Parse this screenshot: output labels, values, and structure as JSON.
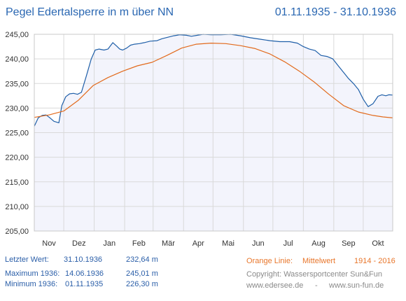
{
  "header": {
    "title": "Pegel Edertalsperre in m über NN",
    "period": "01.11.1935 - 31.10.1936"
  },
  "colors": {
    "pegel_line": "#1f5fa8",
    "mean_line": "#e26a1c",
    "plot_fill": "#f3f4fc",
    "grid": "#d9d9d9",
    "text": "#2a5ea8",
    "orange_text": "#e8762b",
    "grey_text": "#8a8a8a"
  },
  "info": {
    "last": {
      "label": "Letzter Wert:",
      "date": "31.10.1936",
      "value": "232,64 m"
    },
    "max": {
      "label": "Maximum 1936:",
      "date": "14.06.1936",
      "value": "245,01 m"
    },
    "min": {
      "label": "Minimum  1936:",
      "date": "01.11.1935",
      "value": "226,30 m"
    },
    "legend_label": "Orange Linie:",
    "legend_name": "Mittelwert",
    "legend_years": "1914 - 2016",
    "copyright": "Copyright: Wassersportcenter Sun&Fun",
    "site1": "www.edersee.de",
    "separator": "-",
    "site2": "www.sun-fun.de"
  },
  "chart_data": {
    "type": "line",
    "x_unit": "days since 01.11.1935",
    "ylim": [
      205,
      245
    ],
    "xlim": [
      0,
      365
    ],
    "grid": true,
    "yticks": [
      205,
      210,
      215,
      220,
      225,
      230,
      235,
      240,
      245
    ],
    "ytick_labels": [
      "205,00",
      "210,00",
      "215,00",
      "220,00",
      "225,00",
      "230,00",
      "235,00",
      "240,00",
      "245,00"
    ],
    "month_ticks": [
      0,
      30,
      61,
      92,
      121,
      152,
      182,
      213,
      243,
      274,
      305,
      335,
      365
    ],
    "month_labels": [
      "Nov",
      "Dez",
      "Jan",
      "Feb",
      "Mär",
      "Apr",
      "Mai",
      "Jun",
      "Jul",
      "Aug",
      "Sep",
      "Okt"
    ],
    "series": [
      {
        "name": "Pegel",
        "x": [
          0,
          4,
          8,
          12,
          16,
          20,
          25,
          28,
          32,
          36,
          40,
          44,
          48,
          53,
          58,
          62,
          66,
          71,
          75,
          80,
          84,
          87,
          90,
          94,
          98,
          102,
          107,
          112,
          118,
          125,
          130,
          136,
          142,
          148,
          155,
          160,
          166,
          172,
          180,
          190,
          200,
          210,
          220,
          230,
          240,
          250,
          260,
          268,
          274,
          280,
          286,
          292,
          298,
          304,
          310,
          316,
          320,
          325,
          330,
          335,
          340,
          345,
          350,
          354,
          358,
          361,
          365
        ],
        "values": [
          226.3,
          228.0,
          228.5,
          228.6,
          228.0,
          227.3,
          227.0,
          230.5,
          232.3,
          232.9,
          233.0,
          232.8,
          233.2,
          236.5,
          240.0,
          241.8,
          242.0,
          241.8,
          242.0,
          243.3,
          242.6,
          242.0,
          241.8,
          242.2,
          242.8,
          243.0,
          243.1,
          243.3,
          243.6,
          243.7,
          244.1,
          244.4,
          244.7,
          244.9,
          244.8,
          244.6,
          244.8,
          245.0,
          244.9,
          244.9,
          245.0,
          244.7,
          244.3,
          244.0,
          243.7,
          243.5,
          243.5,
          243.2,
          242.5,
          242.0,
          241.7,
          240.7,
          240.5,
          240.0,
          238.5,
          237.0,
          236.0,
          235.0,
          233.8,
          231.8,
          230.3,
          230.9,
          232.4,
          232.7,
          232.5,
          232.7,
          232.64
        ]
      },
      {
        "name": "Mittelwert 1914 - 2016",
        "x": [
          0,
          15,
          30,
          45,
          60,
          75,
          90,
          105,
          120,
          135,
          150,
          165,
          180,
          195,
          210,
          225,
          240,
          255,
          270,
          285,
          300,
          315,
          330,
          345,
          355,
          365
        ],
        "values": [
          228.1,
          228.6,
          229.4,
          231.6,
          234.6,
          236.2,
          237.5,
          238.6,
          239.3,
          240.7,
          242.2,
          243.0,
          243.2,
          243.1,
          242.7,
          242.1,
          241.0,
          239.4,
          237.5,
          235.3,
          232.8,
          230.5,
          229.2,
          228.5,
          228.2,
          228.0
        ]
      }
    ]
  }
}
